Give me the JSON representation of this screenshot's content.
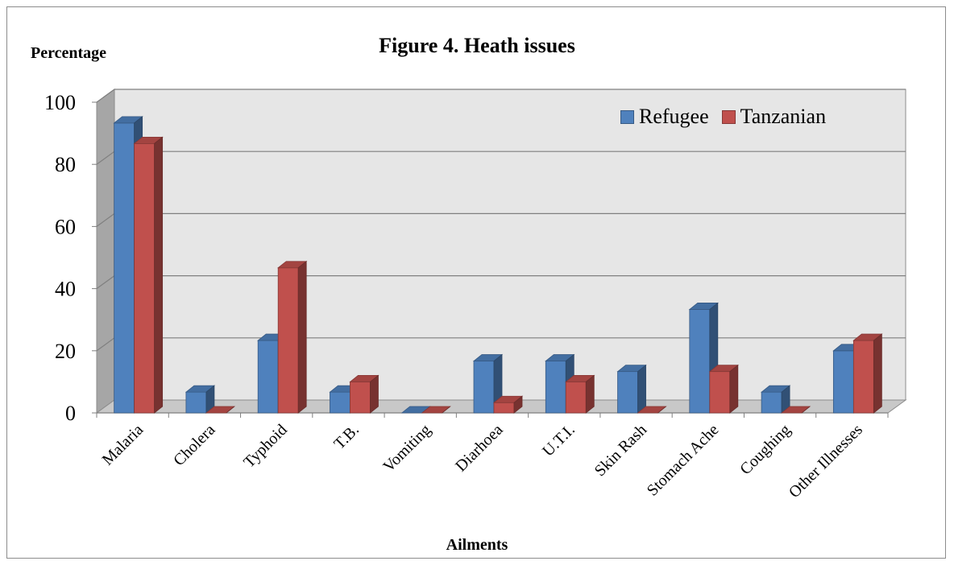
{
  "chart_data": {
    "type": "bar",
    "title": "Figure 4. Heath issues",
    "ylabel": "Percentage",
    "xlabel": "Ailments",
    "ylim": [
      0,
      100
    ],
    "yticks": [
      0,
      20,
      40,
      60,
      80,
      100
    ],
    "grid": true,
    "legend_position": "top-right",
    "categories": [
      "Malaria",
      "Cholera",
      "Typhoid",
      "T.B.",
      "Vomiting",
      "Diarhoea",
      "U.T.I.",
      "Skin Rash",
      "Stomach Ache",
      "Coughing",
      "Other Illnesses"
    ],
    "series": [
      {
        "name": "Refugee",
        "color": "#4f81bd",
        "values": [
          93.3,
          6.7,
          23.3,
          6.7,
          0,
          16.7,
          16.7,
          13.3,
          33.3,
          6.7,
          20.0
        ]
      },
      {
        "name": "Tanzanian",
        "color": "#c0504d",
        "values": [
          86.7,
          0,
          46.7,
          10.0,
          0,
          3.3,
          10.0,
          0,
          13.3,
          0,
          23.3
        ]
      }
    ]
  }
}
